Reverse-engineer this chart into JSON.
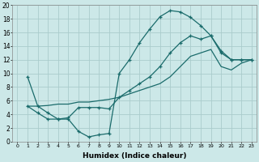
{
  "xlabel": "Humidex (Indice chaleur)",
  "bg_color": "#cce8e8",
  "grid_color": "#aacccc",
  "line_color": "#1a6b6b",
  "xlim": [
    -0.5,
    23.5
  ],
  "ylim": [
    0,
    20
  ],
  "xticks": [
    0,
    1,
    2,
    3,
    4,
    5,
    6,
    7,
    8,
    9,
    10,
    11,
    12,
    13,
    14,
    15,
    16,
    17,
    18,
    19,
    20,
    21,
    22,
    23
  ],
  "yticks": [
    0,
    2,
    4,
    6,
    8,
    10,
    12,
    14,
    16,
    18,
    20
  ],
  "line1_x": [
    1,
    2,
    3,
    4,
    5,
    6,
    7,
    8,
    9,
    10,
    11,
    12,
    13,
    14,
    15,
    16,
    17,
    18,
    19,
    20,
    21,
    22,
    23
  ],
  "line1_y": [
    9.5,
    5.2,
    4.2,
    3.3,
    3.3,
    1.5,
    0.7,
    1.0,
    1.2,
    10.0,
    12.0,
    14.5,
    16.5,
    18.3,
    19.2,
    19.0,
    18.2,
    17.0,
    15.5,
    13.3,
    12.0,
    12.0,
    12.0
  ],
  "line2_x": [
    1,
    2,
    3,
    4,
    5,
    6,
    7,
    8,
    9,
    10,
    11,
    12,
    13,
    14,
    15,
    16,
    17,
    18,
    19,
    20,
    21,
    22,
    23
  ],
  "line2_y": [
    5.2,
    4.2,
    3.3,
    3.3,
    3.5,
    5.0,
    5.0,
    5.0,
    4.8,
    6.5,
    7.5,
    8.5,
    9.5,
    11.0,
    13.0,
    14.5,
    15.5,
    15.0,
    15.5,
    13.0,
    12.0,
    12.0,
    12.0
  ],
  "line3_x": [
    1,
    2,
    3,
    4,
    5,
    6,
    7,
    8,
    9,
    10,
    11,
    12,
    13,
    14,
    15,
    16,
    17,
    18,
    19,
    20,
    21,
    22,
    23
  ],
  "line3_y": [
    5.2,
    5.2,
    5.3,
    5.5,
    5.5,
    5.8,
    5.8,
    6.0,
    6.2,
    6.5,
    7.0,
    7.5,
    8.0,
    8.5,
    9.5,
    11.0,
    12.5,
    13.0,
    13.5,
    11.0,
    10.5,
    11.5,
    12.0
  ]
}
